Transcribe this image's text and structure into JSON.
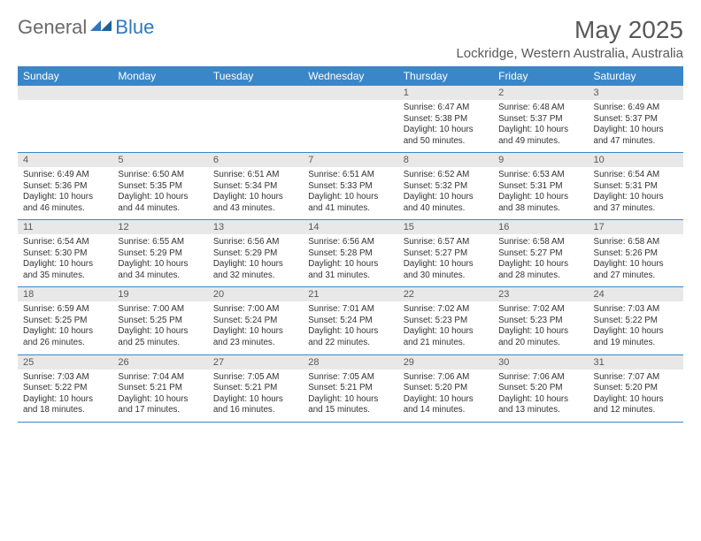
{
  "branding": {
    "text_general": "General",
    "text_blue": "Blue",
    "mark_color": "#2f78bf"
  },
  "title": "May 2025",
  "location": "Lockridge, Western Australia, Australia",
  "colors": {
    "header_bg": "#3b86c7",
    "header_fg": "#ffffff",
    "daynum_bg": "#e8e8e8",
    "rule": "#3b86c7",
    "text": "#333333",
    "muted": "#595959"
  },
  "weekday_labels": [
    "Sunday",
    "Monday",
    "Tuesday",
    "Wednesday",
    "Thursday",
    "Friday",
    "Saturday"
  ],
  "weeks": [
    [
      {
        "day": "",
        "sunrise": "",
        "sunset": "",
        "daylight": ""
      },
      {
        "day": "",
        "sunrise": "",
        "sunset": "",
        "daylight": ""
      },
      {
        "day": "",
        "sunrise": "",
        "sunset": "",
        "daylight": ""
      },
      {
        "day": "",
        "sunrise": "",
        "sunset": "",
        "daylight": ""
      },
      {
        "day": "1",
        "sunrise": "Sunrise: 6:47 AM",
        "sunset": "Sunset: 5:38 PM",
        "daylight": "Daylight: 10 hours and 50 minutes."
      },
      {
        "day": "2",
        "sunrise": "Sunrise: 6:48 AM",
        "sunset": "Sunset: 5:37 PM",
        "daylight": "Daylight: 10 hours and 49 minutes."
      },
      {
        "day": "3",
        "sunrise": "Sunrise: 6:49 AM",
        "sunset": "Sunset: 5:37 PM",
        "daylight": "Daylight: 10 hours and 47 minutes."
      }
    ],
    [
      {
        "day": "4",
        "sunrise": "Sunrise: 6:49 AM",
        "sunset": "Sunset: 5:36 PM",
        "daylight": "Daylight: 10 hours and 46 minutes."
      },
      {
        "day": "5",
        "sunrise": "Sunrise: 6:50 AM",
        "sunset": "Sunset: 5:35 PM",
        "daylight": "Daylight: 10 hours and 44 minutes."
      },
      {
        "day": "6",
        "sunrise": "Sunrise: 6:51 AM",
        "sunset": "Sunset: 5:34 PM",
        "daylight": "Daylight: 10 hours and 43 minutes."
      },
      {
        "day": "7",
        "sunrise": "Sunrise: 6:51 AM",
        "sunset": "Sunset: 5:33 PM",
        "daylight": "Daylight: 10 hours and 41 minutes."
      },
      {
        "day": "8",
        "sunrise": "Sunrise: 6:52 AM",
        "sunset": "Sunset: 5:32 PM",
        "daylight": "Daylight: 10 hours and 40 minutes."
      },
      {
        "day": "9",
        "sunrise": "Sunrise: 6:53 AM",
        "sunset": "Sunset: 5:31 PM",
        "daylight": "Daylight: 10 hours and 38 minutes."
      },
      {
        "day": "10",
        "sunrise": "Sunrise: 6:54 AM",
        "sunset": "Sunset: 5:31 PM",
        "daylight": "Daylight: 10 hours and 37 minutes."
      }
    ],
    [
      {
        "day": "11",
        "sunrise": "Sunrise: 6:54 AM",
        "sunset": "Sunset: 5:30 PM",
        "daylight": "Daylight: 10 hours and 35 minutes."
      },
      {
        "day": "12",
        "sunrise": "Sunrise: 6:55 AM",
        "sunset": "Sunset: 5:29 PM",
        "daylight": "Daylight: 10 hours and 34 minutes."
      },
      {
        "day": "13",
        "sunrise": "Sunrise: 6:56 AM",
        "sunset": "Sunset: 5:29 PM",
        "daylight": "Daylight: 10 hours and 32 minutes."
      },
      {
        "day": "14",
        "sunrise": "Sunrise: 6:56 AM",
        "sunset": "Sunset: 5:28 PM",
        "daylight": "Daylight: 10 hours and 31 minutes."
      },
      {
        "day": "15",
        "sunrise": "Sunrise: 6:57 AM",
        "sunset": "Sunset: 5:27 PM",
        "daylight": "Daylight: 10 hours and 30 minutes."
      },
      {
        "day": "16",
        "sunrise": "Sunrise: 6:58 AM",
        "sunset": "Sunset: 5:27 PM",
        "daylight": "Daylight: 10 hours and 28 minutes."
      },
      {
        "day": "17",
        "sunrise": "Sunrise: 6:58 AM",
        "sunset": "Sunset: 5:26 PM",
        "daylight": "Daylight: 10 hours and 27 minutes."
      }
    ],
    [
      {
        "day": "18",
        "sunrise": "Sunrise: 6:59 AM",
        "sunset": "Sunset: 5:25 PM",
        "daylight": "Daylight: 10 hours and 26 minutes."
      },
      {
        "day": "19",
        "sunrise": "Sunrise: 7:00 AM",
        "sunset": "Sunset: 5:25 PM",
        "daylight": "Daylight: 10 hours and 25 minutes."
      },
      {
        "day": "20",
        "sunrise": "Sunrise: 7:00 AM",
        "sunset": "Sunset: 5:24 PM",
        "daylight": "Daylight: 10 hours and 23 minutes."
      },
      {
        "day": "21",
        "sunrise": "Sunrise: 7:01 AM",
        "sunset": "Sunset: 5:24 PM",
        "daylight": "Daylight: 10 hours and 22 minutes."
      },
      {
        "day": "22",
        "sunrise": "Sunrise: 7:02 AM",
        "sunset": "Sunset: 5:23 PM",
        "daylight": "Daylight: 10 hours and 21 minutes."
      },
      {
        "day": "23",
        "sunrise": "Sunrise: 7:02 AM",
        "sunset": "Sunset: 5:23 PM",
        "daylight": "Daylight: 10 hours and 20 minutes."
      },
      {
        "day": "24",
        "sunrise": "Sunrise: 7:03 AM",
        "sunset": "Sunset: 5:22 PM",
        "daylight": "Daylight: 10 hours and 19 minutes."
      }
    ],
    [
      {
        "day": "25",
        "sunrise": "Sunrise: 7:03 AM",
        "sunset": "Sunset: 5:22 PM",
        "daylight": "Daylight: 10 hours and 18 minutes."
      },
      {
        "day": "26",
        "sunrise": "Sunrise: 7:04 AM",
        "sunset": "Sunset: 5:21 PM",
        "daylight": "Daylight: 10 hours and 17 minutes."
      },
      {
        "day": "27",
        "sunrise": "Sunrise: 7:05 AM",
        "sunset": "Sunset: 5:21 PM",
        "daylight": "Daylight: 10 hours and 16 minutes."
      },
      {
        "day": "28",
        "sunrise": "Sunrise: 7:05 AM",
        "sunset": "Sunset: 5:21 PM",
        "daylight": "Daylight: 10 hours and 15 minutes."
      },
      {
        "day": "29",
        "sunrise": "Sunrise: 7:06 AM",
        "sunset": "Sunset: 5:20 PM",
        "daylight": "Daylight: 10 hours and 14 minutes."
      },
      {
        "day": "30",
        "sunrise": "Sunrise: 7:06 AM",
        "sunset": "Sunset: 5:20 PM",
        "daylight": "Daylight: 10 hours and 13 minutes."
      },
      {
        "day": "31",
        "sunrise": "Sunrise: 7:07 AM",
        "sunset": "Sunset: 5:20 PM",
        "daylight": "Daylight: 10 hours and 12 minutes."
      }
    ]
  ]
}
